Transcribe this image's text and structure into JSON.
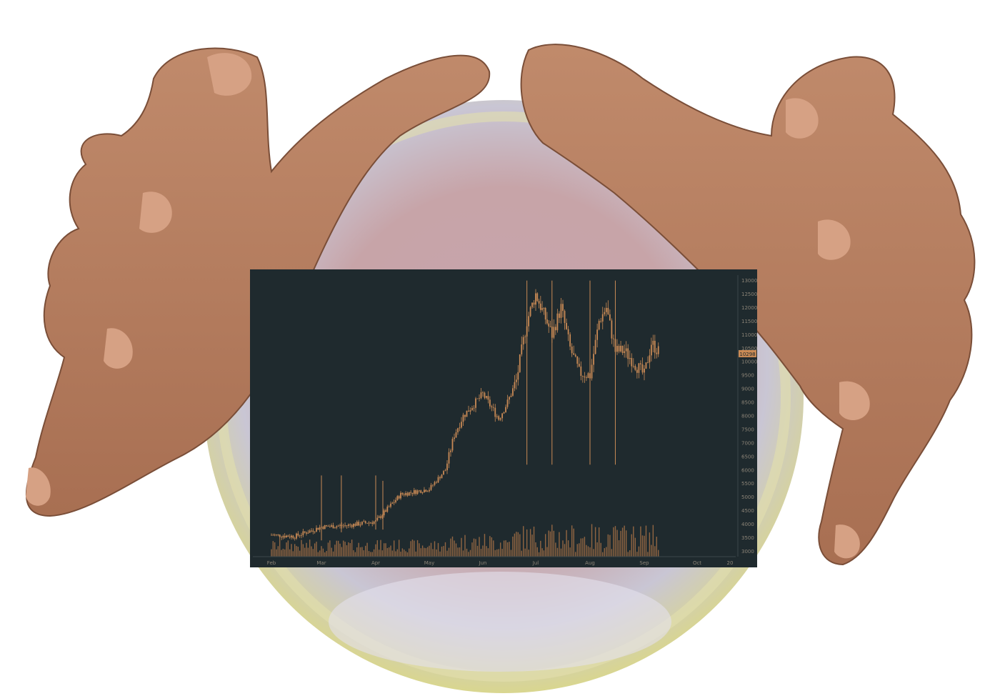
{
  "chart_data": {
    "type": "candlestick",
    "title": "",
    "xlabel": "",
    "ylabel": "",
    "x_ticks": [
      "Feb",
      "Mar",
      "Apr",
      "May",
      "Jun",
      "Jul",
      "Aug",
      "Sep",
      "Oct",
      "20"
    ],
    "y_ticks": [
      3000,
      3500,
      4000,
      4500,
      5000,
      5500,
      6000,
      6500,
      7000,
      7500,
      8000,
      8500,
      9000,
      9500,
      10000,
      10500,
      11000,
      11500,
      12000,
      12500,
      13000
    ],
    "ylim": [
      2800,
      13200
    ],
    "last_price_label": "10298",
    "grid": false,
    "legend": "none",
    "colors": {
      "background": "#1f2a2e",
      "price": "#c98a55",
      "volume": "#b8794a",
      "axis_text": "#8c8477",
      "badge": "#c98a55"
    },
    "series": [
      {
        "name": "",
        "x": [
          "Feb 1",
          "Feb 15",
          "Mar 1",
          "Mar 15",
          "Apr 1",
          "Apr 15",
          "May 1",
          "May 10",
          "May 15",
          "May 20",
          "Jun 1",
          "Jun 10",
          "Jun 15",
          "Jun 20",
          "Jun 26",
          "Jul 1",
          "Jul 10",
          "Jul 15",
          "Jul 20",
          "Jul 25",
          "Aug 1",
          "Aug 6",
          "Aug 10",
          "Aug 15",
          "Aug 20",
          "Aug 25",
          "Sep 1",
          "Sep 5",
          "Sep 10"
        ],
        "values": [
          3600,
          3550,
          3900,
          3950,
          4100,
          5100,
          5300,
          6000,
          7300,
          8000,
          8800,
          7900,
          8500,
          9300,
          11500,
          12500,
          11000,
          12000,
          10500,
          9600,
          9500,
          11500,
          12000,
          10400,
          10400,
          10000,
          9500,
          10700,
          10298
        ]
      }
    ]
  },
  "scene": {
    "background_color": "#ffffff",
    "crystal_ball_colors": [
      "#d9d68f",
      "#c9a3a6",
      "#c7c4d3"
    ],
    "hand_color": "#b57f62",
    "hand_shadow": "#7a4e38"
  }
}
